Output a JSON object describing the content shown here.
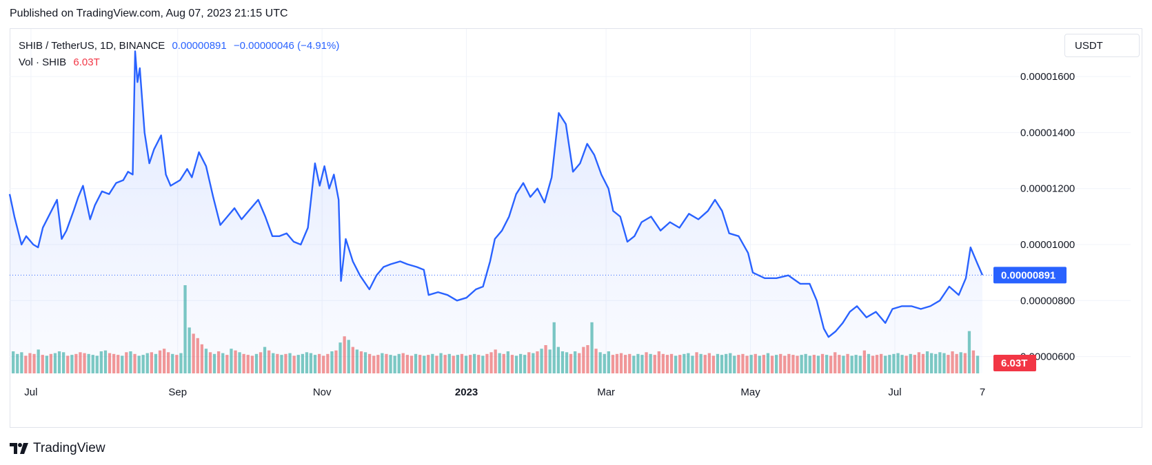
{
  "published": "Published on TradingView.com, Aug 07, 2023 21:15 UTC",
  "legend": {
    "symbol": "SHIB / TetherUS, 1D, BINANCE",
    "last": "0.00000891",
    "change": "−0.00000046 (−4.91%)",
    "vol_label": "Vol · SHIB",
    "vol_value": "6.03T"
  },
  "currency_button": "USDT",
  "brand": "TradingView",
  "colors": {
    "line": "#2962ff",
    "fill": "#2962ff",
    "vol_up": "#26a69a",
    "vol_down": "#ef5350",
    "grid": "#f0f3fa",
    "label_bg_price": "#2962ff",
    "label_bg_vol": "#f23645"
  },
  "chart_data": {
    "type": "area",
    "title": "SHIB / TetherUS, 1D, BINANCE",
    "x_range": [
      "2022-06-22",
      "2023-08-07"
    ],
    "x_ticks": [
      {
        "label": "Jul",
        "date": "2022-07-01",
        "bold": false
      },
      {
        "label": "Sep",
        "date": "2022-09-01",
        "bold": false
      },
      {
        "label": "Nov",
        "date": "2022-11-01",
        "bold": false
      },
      {
        "label": "2023",
        "date": "2023-01-01",
        "bold": true
      },
      {
        "label": "Mar",
        "date": "2023-03-01",
        "bold": false
      },
      {
        "label": "May",
        "date": "2023-05-01",
        "bold": false
      },
      {
        "label": "Jul",
        "date": "2023-07-01",
        "bold": false
      },
      {
        "label": "7",
        "date": "2023-08-07",
        "bold": false
      }
    ],
    "y_ticks": [
      "0.00001600",
      "0.00001400",
      "0.00001200",
      "0.00001000",
      "0.00000800",
      "0.00000600"
    ],
    "y_range": [
      5.4e-06,
      1.77e-05
    ],
    "last_price": 8.91e-06,
    "last_price_label": "0.00000891",
    "last_volume_label": "6.03T",
    "series": [
      {
        "points": [
          [
            "2022-06-22",
            1.18e-05
          ],
          [
            "2022-06-24",
            1.1e-05
          ],
          [
            "2022-06-27",
            1e-05
          ],
          [
            "2022-06-29",
            1.03e-05
          ],
          [
            "2022-07-02",
            1e-05
          ],
          [
            "2022-07-04",
            9.9e-06
          ],
          [
            "2022-07-06",
            1.06e-05
          ],
          [
            "2022-07-09",
            1.11e-05
          ],
          [
            "2022-07-12",
            1.16e-05
          ],
          [
            "2022-07-14",
            1.02e-05
          ],
          [
            "2022-07-16",
            1.05e-05
          ],
          [
            "2022-07-19",
            1.12e-05
          ],
          [
            "2022-07-21",
            1.17e-05
          ],
          [
            "2022-07-23",
            1.21e-05
          ],
          [
            "2022-07-26",
            1.09e-05
          ],
          [
            "2022-07-28",
            1.14e-05
          ],
          [
            "2022-07-31",
            1.19e-05
          ],
          [
            "2022-08-03",
            1.18e-05
          ],
          [
            "2022-08-06",
            1.22e-05
          ],
          [
            "2022-08-09",
            1.23e-05
          ],
          [
            "2022-08-11",
            1.26e-05
          ],
          [
            "2022-08-13",
            1.25e-05
          ],
          [
            "2022-08-14",
            1.69e-05
          ],
          [
            "2022-08-15",
            1.58e-05
          ],
          [
            "2022-08-16",
            1.63e-05
          ],
          [
            "2022-08-18",
            1.4e-05
          ],
          [
            "2022-08-20",
            1.29e-05
          ],
          [
            "2022-08-22",
            1.34e-05
          ],
          [
            "2022-08-25",
            1.39e-05
          ],
          [
            "2022-08-27",
            1.25e-05
          ],
          [
            "2022-08-29",
            1.21e-05
          ],
          [
            "2022-09-02",
            1.23e-05
          ],
          [
            "2022-09-05",
            1.27e-05
          ],
          [
            "2022-09-07",
            1.24e-05
          ],
          [
            "2022-09-10",
            1.33e-05
          ],
          [
            "2022-09-13",
            1.28e-05
          ],
          [
            "2022-09-16",
            1.17e-05
          ],
          [
            "2022-09-19",
            1.07e-05
          ],
          [
            "2022-09-22",
            1.1e-05
          ],
          [
            "2022-09-25",
            1.13e-05
          ],
          [
            "2022-09-28",
            1.09e-05
          ],
          [
            "2022-10-01",
            1.12e-05
          ],
          [
            "2022-10-05",
            1.16e-05
          ],
          [
            "2022-10-08",
            1.1e-05
          ],
          [
            "2022-10-11",
            1.03e-05
          ],
          [
            "2022-10-14",
            1.03e-05
          ],
          [
            "2022-10-17",
            1.04e-05
          ],
          [
            "2022-10-20",
            1.01e-05
          ],
          [
            "2022-10-23",
            1e-05
          ],
          [
            "2022-10-26",
            1.06e-05
          ],
          [
            "2022-10-29",
            1.29e-05
          ],
          [
            "2022-10-31",
            1.21e-05
          ],
          [
            "2022-11-02",
            1.28e-05
          ],
          [
            "2022-11-04",
            1.2e-05
          ],
          [
            "2022-11-06",
            1.25e-05
          ],
          [
            "2022-11-08",
            1.16e-05
          ],
          [
            "2022-11-09",
            8.7e-06
          ],
          [
            "2022-11-11",
            1.02e-05
          ],
          [
            "2022-11-14",
            9.4e-06
          ],
          [
            "2022-11-17",
            8.9e-06
          ],
          [
            "2022-11-21",
            8.4e-06
          ],
          [
            "2022-11-24",
            8.9e-06
          ],
          [
            "2022-11-27",
            9.2e-06
          ],
          [
            "2022-11-30",
            9.3e-06
          ],
          [
            "2022-12-04",
            9.4e-06
          ],
          [
            "2022-12-07",
            9.3e-06
          ],
          [
            "2022-12-11",
            9.2e-06
          ],
          [
            "2022-12-14",
            9.1e-06
          ],
          [
            "2022-12-16",
            8.2e-06
          ],
          [
            "2022-12-20",
            8.3e-06
          ],
          [
            "2022-12-24",
            8.2e-06
          ],
          [
            "2022-12-28",
            8e-06
          ],
          [
            "2023-01-01",
            8.1e-06
          ],
          [
            "2023-01-05",
            8.4e-06
          ],
          [
            "2023-01-08",
            8.5e-06
          ],
          [
            "2023-01-11",
            9.4e-06
          ],
          [
            "2023-01-13",
            1.02e-05
          ],
          [
            "2023-01-16",
            1.05e-05
          ],
          [
            "2023-01-19",
            1.1e-05
          ],
          [
            "2023-01-22",
            1.18e-05
          ],
          [
            "2023-01-25",
            1.22e-05
          ],
          [
            "2023-01-28",
            1.17e-05
          ],
          [
            "2023-01-31",
            1.2e-05
          ],
          [
            "2023-02-03",
            1.15e-05
          ],
          [
            "2023-02-06",
            1.24e-05
          ],
          [
            "2023-02-09",
            1.47e-05
          ],
          [
            "2023-02-12",
            1.43e-05
          ],
          [
            "2023-02-15",
            1.26e-05
          ],
          [
            "2023-02-18",
            1.29e-05
          ],
          [
            "2023-02-21",
            1.36e-05
          ],
          [
            "2023-02-24",
            1.32e-05
          ],
          [
            "2023-02-27",
            1.25e-05
          ],
          [
            "2023-03-02",
            1.2e-05
          ],
          [
            "2023-03-04",
            1.12e-05
          ],
          [
            "2023-03-07",
            1.1e-05
          ],
          [
            "2023-03-10",
            1.01e-05
          ],
          [
            "2023-03-13",
            1.03e-05
          ],
          [
            "2023-03-16",
            1.08e-05
          ],
          [
            "2023-03-20",
            1.1e-05
          ],
          [
            "2023-03-24",
            1.05e-05
          ],
          [
            "2023-03-28",
            1.08e-05
          ],
          [
            "2023-04-01",
            1.06e-05
          ],
          [
            "2023-04-05",
            1.11e-05
          ],
          [
            "2023-04-09",
            1.09e-05
          ],
          [
            "2023-04-13",
            1.12e-05
          ],
          [
            "2023-04-16",
            1.16e-05
          ],
          [
            "2023-04-19",
            1.12e-05
          ],
          [
            "2023-04-22",
            1.04e-05
          ],
          [
            "2023-04-26",
            1.03e-05
          ],
          [
            "2023-04-30",
            9.7e-06
          ],
          [
            "2023-05-02",
            9e-06
          ],
          [
            "2023-05-07",
            8.8e-06
          ],
          [
            "2023-05-12",
            8.8e-06
          ],
          [
            "2023-05-17",
            8.9e-06
          ],
          [
            "2023-05-22",
            8.6e-06
          ],
          [
            "2023-05-26",
            8.6e-06
          ],
          [
            "2023-05-29",
            8e-06
          ],
          [
            "2023-06-01",
            7e-06
          ],
          [
            "2023-06-03",
            6.7e-06
          ],
          [
            "2023-06-06",
            6.9e-06
          ],
          [
            "2023-06-09",
            7.2e-06
          ],
          [
            "2023-06-12",
            7.6e-06
          ],
          [
            "2023-06-15",
            7.8e-06
          ],
          [
            "2023-06-19",
            7.4e-06
          ],
          [
            "2023-06-23",
            7.6e-06
          ],
          [
            "2023-06-27",
            7.2e-06
          ],
          [
            "2023-06-30",
            7.7e-06
          ],
          [
            "2023-07-04",
            7.8e-06
          ],
          [
            "2023-07-08",
            7.8e-06
          ],
          [
            "2023-07-12",
            7.7e-06
          ],
          [
            "2023-07-16",
            7.8e-06
          ],
          [
            "2023-07-20",
            8e-06
          ],
          [
            "2023-07-24",
            8.5e-06
          ],
          [
            "2023-07-28",
            8.2e-06
          ],
          [
            "2023-07-31",
            8.8e-06
          ],
          [
            "2023-08-02",
            9.9e-06
          ],
          [
            "2023-08-05",
            9.3e-06
          ],
          [
            "2023-08-07",
            8.91e-06
          ]
        ]
      }
    ],
    "volume": {
      "heights_relative": [
        0.25,
        0.22,
        0.24,
        0.2,
        0.23,
        0.22,
        0.27,
        0.21,
        0.2,
        0.22,
        0.23,
        0.25,
        0.24,
        0.2,
        0.21,
        0.22,
        0.24,
        0.23,
        0.22,
        0.21,
        0.2,
        0.25,
        0.26,
        0.23,
        0.22,
        0.21,
        0.2,
        0.24,
        0.25,
        0.22,
        0.2,
        0.21,
        0.23,
        0.24,
        0.22,
        0.26,
        0.28,
        0.24,
        0.22,
        0.21,
        0.23,
        1.0,
        0.52,
        0.45,
        0.4,
        0.33,
        0.28,
        0.24,
        0.22,
        0.25,
        0.23,
        0.21,
        0.28,
        0.26,
        0.24,
        0.22,
        0.21,
        0.2,
        0.22,
        0.24,
        0.3,
        0.26,
        0.23,
        0.22,
        0.21,
        0.22,
        0.23,
        0.2,
        0.21,
        0.22,
        0.24,
        0.23,
        0.21,
        0.22,
        0.2,
        0.22,
        0.25,
        0.26,
        0.35,
        0.42,
        0.38,
        0.3,
        0.27,
        0.25,
        0.24,
        0.22,
        0.2,
        0.21,
        0.23,
        0.22,
        0.21,
        0.2,
        0.22,
        0.23,
        0.21,
        0.2,
        0.22,
        0.21,
        0.2,
        0.21,
        0.22,
        0.2,
        0.23,
        0.21,
        0.22,
        0.2,
        0.21,
        0.22,
        0.2,
        0.21,
        0.22,
        0.21,
        0.2,
        0.22,
        0.24,
        0.27,
        0.23,
        0.22,
        0.25,
        0.21,
        0.2,
        0.22,
        0.21,
        0.24,
        0.23,
        0.25,
        0.28,
        0.32,
        0.27,
        0.58,
        0.3,
        0.25,
        0.24,
        0.22,
        0.25,
        0.23,
        0.3,
        0.32,
        0.58,
        0.28,
        0.24,
        0.22,
        0.25,
        0.21,
        0.22,
        0.23,
        0.21,
        0.22,
        0.2,
        0.22,
        0.21,
        0.24,
        0.22,
        0.21,
        0.25,
        0.22,
        0.21,
        0.22,
        0.2,
        0.21,
        0.22,
        0.23,
        0.2,
        0.24,
        0.22,
        0.21,
        0.23,
        0.2,
        0.22,
        0.21,
        0.22,
        0.23,
        0.2,
        0.21,
        0.22,
        0.2,
        0.21,
        0.22,
        0.2,
        0.21,
        0.23,
        0.2,
        0.21,
        0.22,
        0.2,
        0.22,
        0.21,
        0.2,
        0.21,
        0.22,
        0.2,
        0.21,
        0.2,
        0.22,
        0.21,
        0.2,
        0.24,
        0.21,
        0.2,
        0.22,
        0.2,
        0.21,
        0.2,
        0.26,
        0.22,
        0.2,
        0.21,
        0.22,
        0.2,
        0.21,
        0.22,
        0.23,
        0.21,
        0.2,
        0.22,
        0.21,
        0.24,
        0.22,
        0.25,
        0.23,
        0.22,
        0.24,
        0.23,
        0.21,
        0.25,
        0.22,
        0.24,
        0.23,
        0.48,
        0.26,
        0.2
      ],
      "up_flags": "alternating-by-price-move"
    }
  }
}
